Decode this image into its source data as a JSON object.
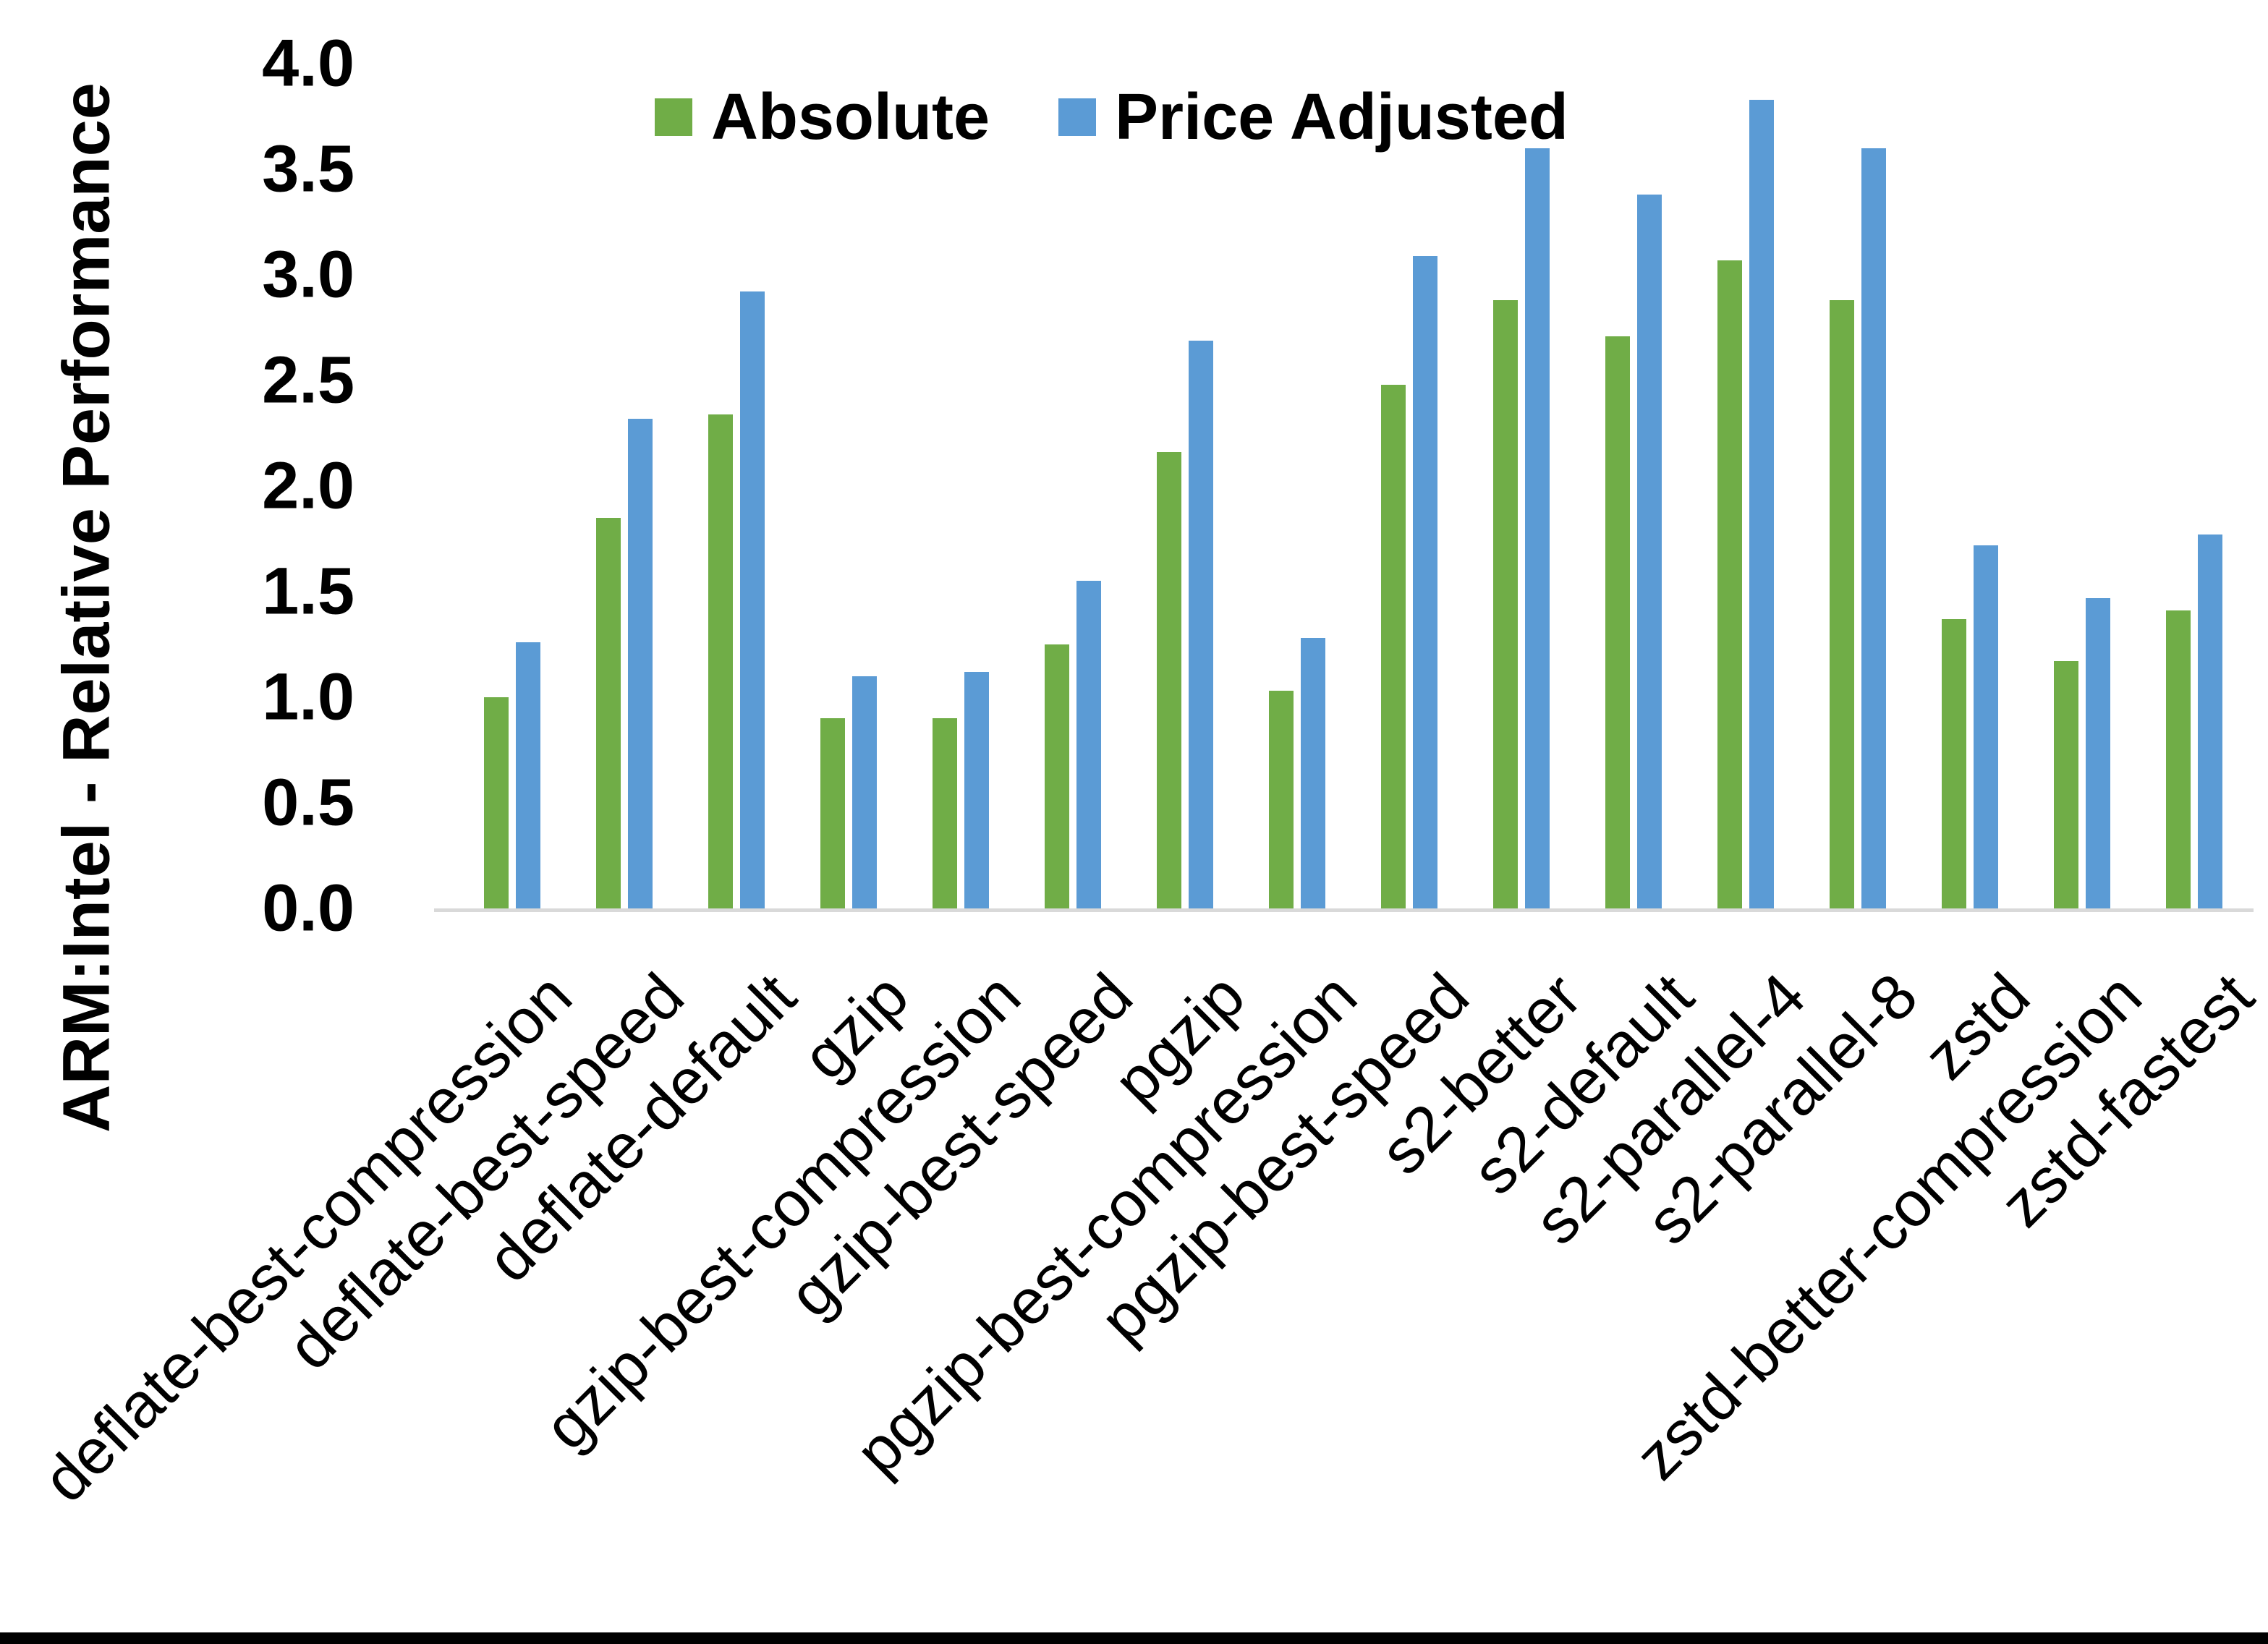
{
  "figure": {
    "background_color": "#FFFFFF",
    "bottom_border_color": "#000000"
  },
  "chart_data": {
    "type": "bar",
    "title": "",
    "xlabel": "",
    "ylabel": "ARM:Intel - Relative Performance",
    "ylim": [
      0.0,
      4.0
    ],
    "grid": false,
    "plot_background": "#FFFFFF",
    "axis_line_color": "#D9D9D9",
    "text_color": "#000000",
    "legend_position": "top-center-inside",
    "yticks": [
      {
        "value": 0.0,
        "label": "0.0"
      },
      {
        "value": 0.5,
        "label": "0.5"
      },
      {
        "value": 1.0,
        "label": "1.0"
      },
      {
        "value": 1.5,
        "label": "1.5"
      },
      {
        "value": 2.0,
        "label": "2.0"
      },
      {
        "value": 2.5,
        "label": "2.5"
      },
      {
        "value": 3.0,
        "label": "3.0"
      },
      {
        "value": 3.5,
        "label": "3.5"
      },
      {
        "value": 4.0,
        "label": "4.0"
      }
    ],
    "categories": [
      "deflate-best-compression",
      "deflate-best-speed",
      "deflate-default",
      "gzip",
      "gzip-best-compression",
      "gzip-best-speed",
      "pgzip",
      "pgzip-best-compression",
      "pgzip-best-speed",
      "s2-better",
      "s2-default",
      "s2-parallel-4",
      "s2-parallel-8",
      "zstd",
      "zstd-better-compression",
      "zstd-fastest"
    ],
    "series": [
      {
        "name": "Absolute",
        "color": "#70AD47",
        "values": [
          1.0,
          1.85,
          2.34,
          0.9,
          0.9,
          1.25,
          2.16,
          1.03,
          2.48,
          2.88,
          2.71,
          3.07,
          2.88,
          1.37,
          1.17,
          1.41
        ]
      },
      {
        "name": "Price Adjusted",
        "color": "#5B9BD5",
        "values": [
          1.26,
          2.32,
          2.92,
          1.1,
          1.12,
          1.55,
          2.69,
          1.28,
          3.09,
          3.6,
          3.38,
          3.83,
          3.6,
          1.72,
          1.47,
          1.77
        ]
      }
    ]
  }
}
